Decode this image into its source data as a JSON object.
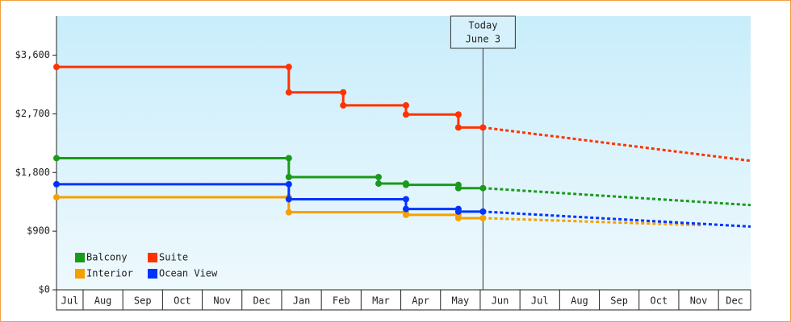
{
  "chart_data": {
    "type": "step-line",
    "categories": [
      "Jul",
      "Aug",
      "Sep",
      "Oct",
      "Nov",
      "Dec",
      "Jan",
      "Feb",
      "Mar",
      "Apr",
      "May",
      "Jun",
      "Jul",
      "Aug",
      "Sep",
      "Oct",
      "Nov",
      "Dec"
    ],
    "xlim": [
      0.33,
      17.81
    ],
    "ylim": [
      0,
      4200
    ],
    "yticks": [
      {
        "value": 0,
        "label": "$0"
      },
      {
        "value": 900,
        "label": "$900"
      },
      {
        "value": 1800,
        "label": "$1,800"
      },
      {
        "value": 2700,
        "label": "$2,700"
      },
      {
        "value": 3600,
        "label": "$3,600"
      }
    ],
    "annotation": {
      "x": 11.07,
      "lines": [
        "Today",
        "June 3"
      ]
    },
    "legend": "lower-left",
    "series": [
      {
        "name": "Balcony",
        "color": "#1a9a1a",
        "x": [
          0.33,
          6.18,
          6.18,
          8.44,
          8.44,
          9.13,
          9.13,
          10.45,
          10.45,
          11.07
        ],
        "values": [
          2020,
          2020,
          1730,
          1730,
          1630,
          1630,
          1610,
          1610,
          1560,
          1560
        ],
        "projection": {
          "x": [
            11.07,
            17.81
          ],
          "values": [
            1560,
            1300
          ]
        }
      },
      {
        "name": "Suite",
        "color": "#ff3300",
        "x": [
          0.33,
          6.18,
          6.18,
          7.55,
          7.55,
          9.13,
          9.13,
          10.45,
          10.45,
          11.07
        ],
        "values": [
          3420,
          3420,
          3030,
          3030,
          2830,
          2830,
          2690,
          2690,
          2490,
          2490
        ],
        "projection": {
          "x": [
            11.07,
            17.81
          ],
          "values": [
            2490,
            1980
          ]
        }
      },
      {
        "name": "Interior",
        "color": "#f5a000",
        "x": [
          0.33,
          6.18,
          6.18,
          9.13,
          9.13,
          10.45,
          10.45,
          11.07
        ],
        "values": [
          1420,
          1420,
          1190,
          1190,
          1150,
          1150,
          1100,
          1100
        ],
        "projection": {
          "x": [
            11.07,
            16.6
          ],
          "values": [
            1100,
            990
          ]
        }
      },
      {
        "name": "Ocean View",
        "color": "#0033ff",
        "x": [
          0.33,
          6.18,
          6.18,
          9.13,
          9.13,
          10.45,
          10.45,
          11.07
        ],
        "values": [
          1620,
          1620,
          1390,
          1390,
          1240,
          1240,
          1200,
          1200
        ],
        "projection": {
          "x": [
            11.07,
            17.81
          ],
          "values": [
            1200,
            970
          ]
        }
      }
    ]
  }
}
